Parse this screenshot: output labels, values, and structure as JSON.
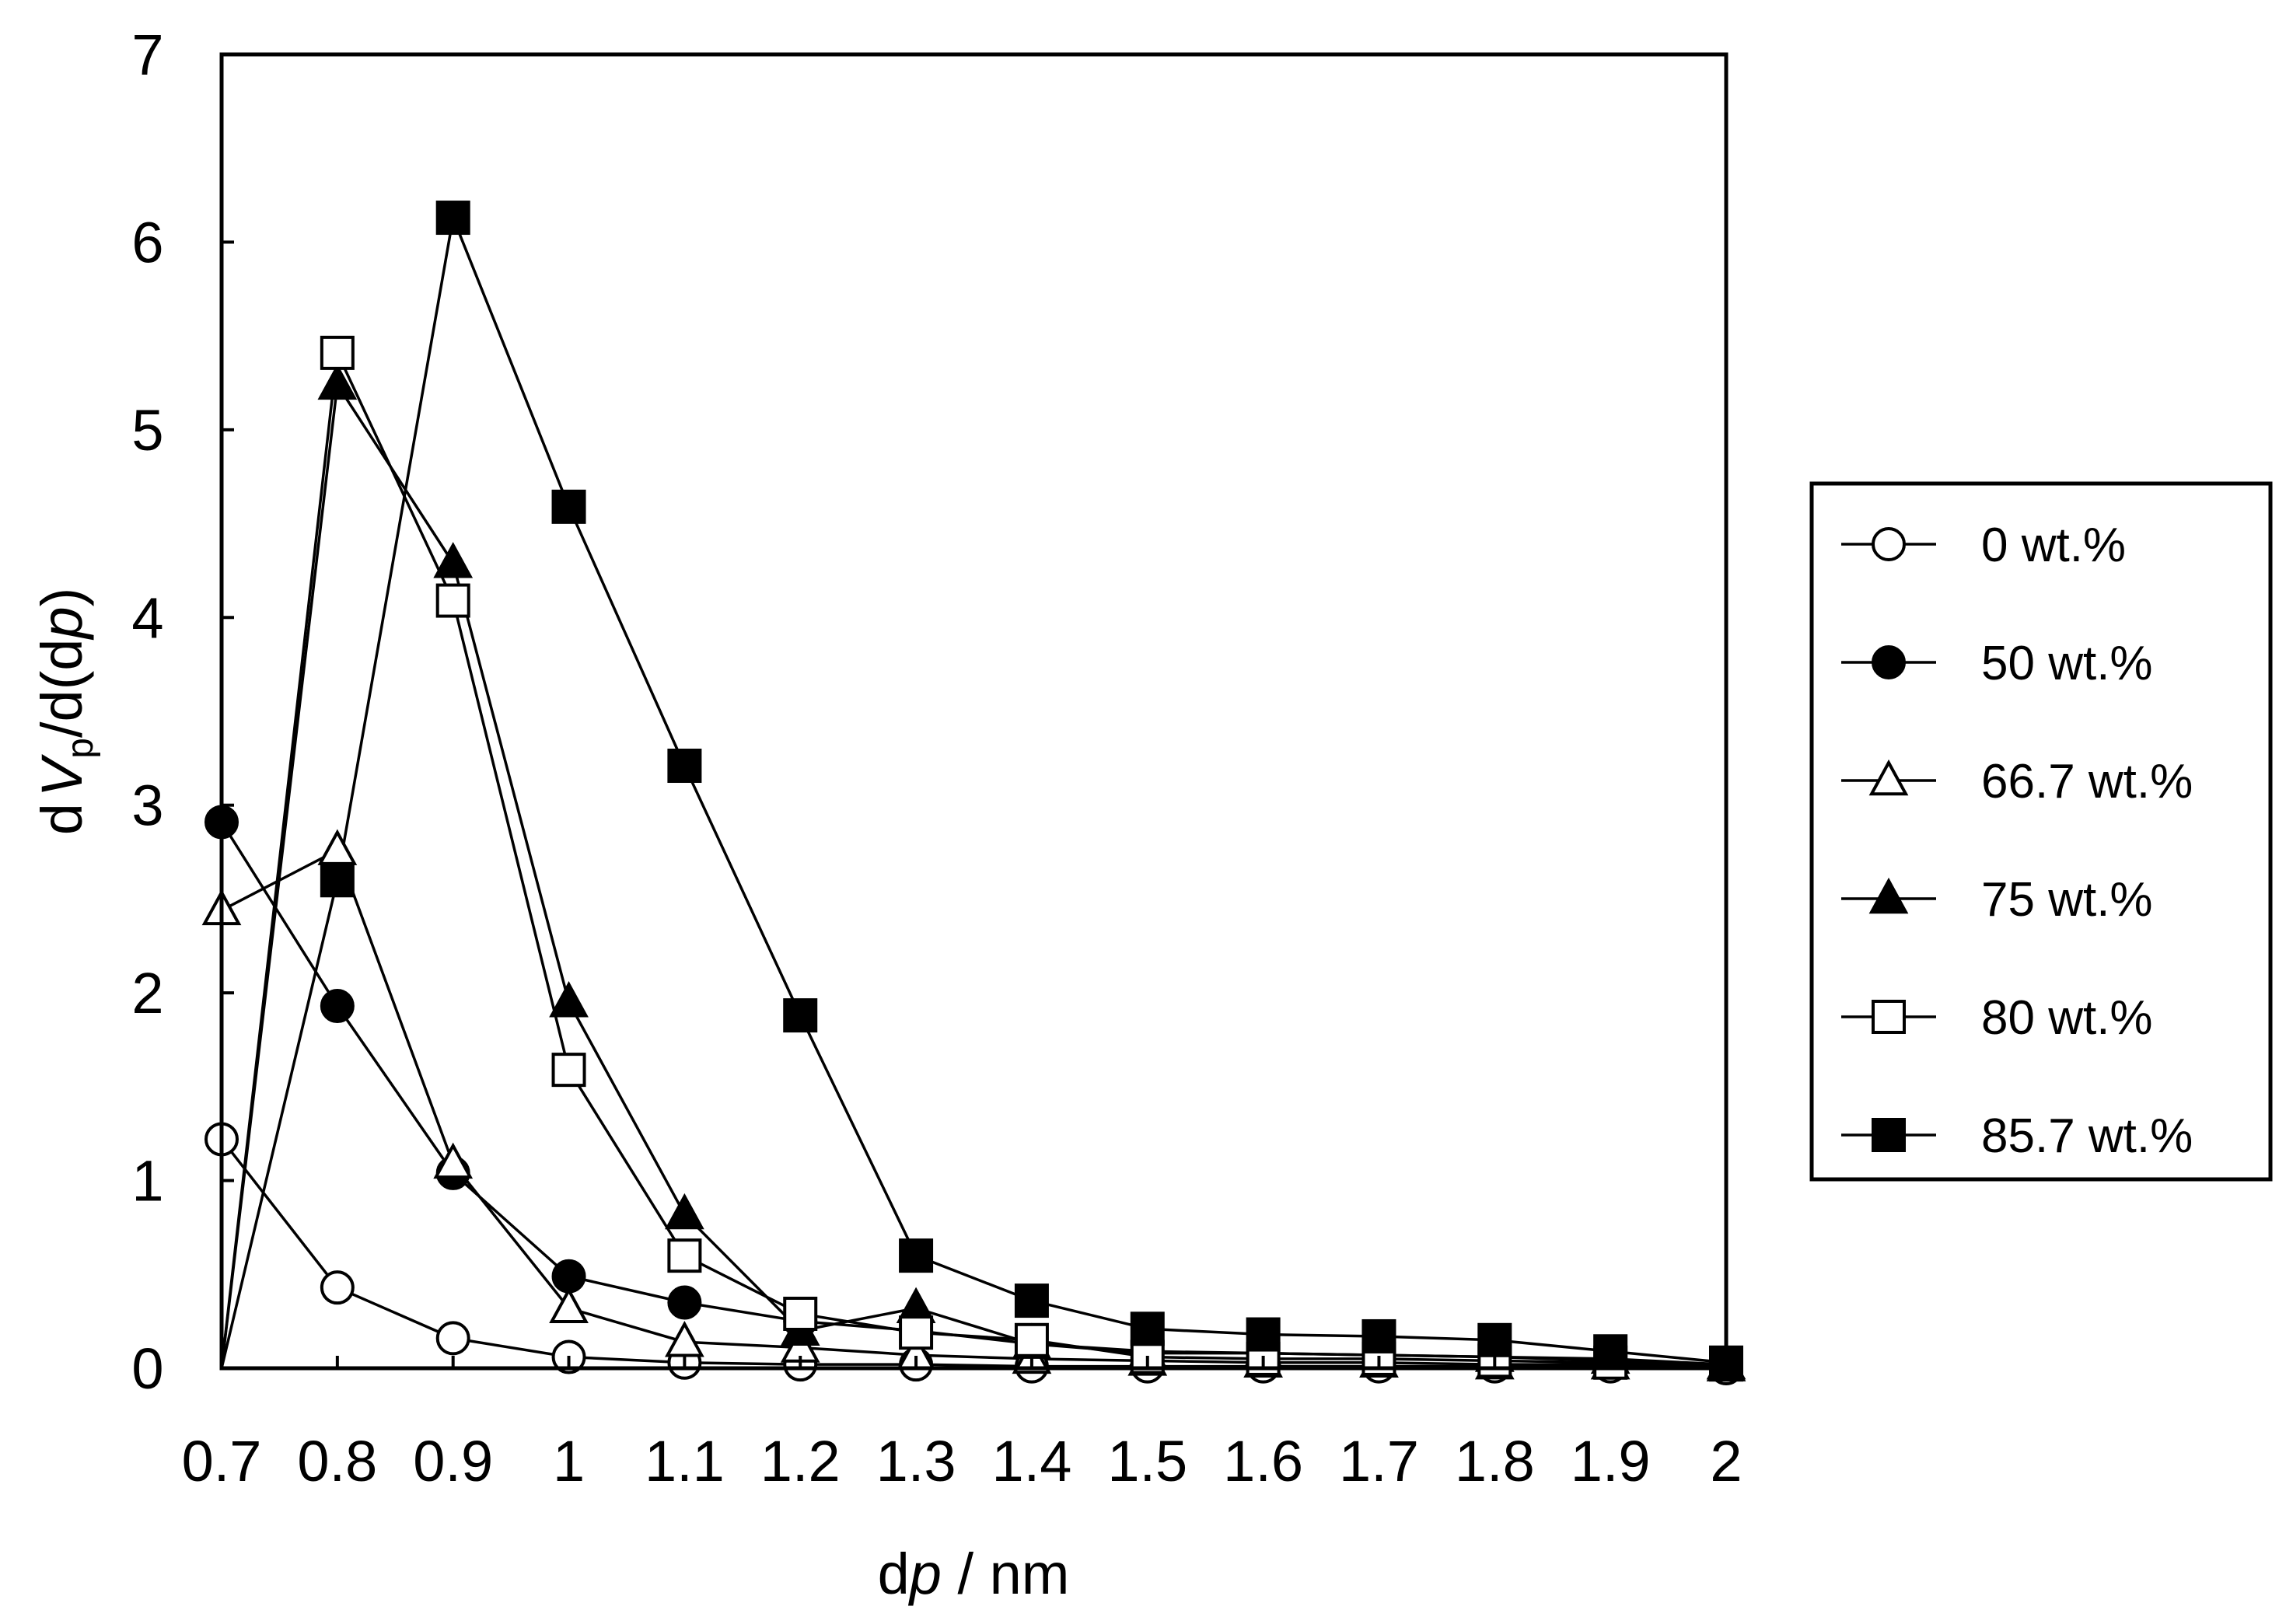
{
  "chart_data": {
    "type": "line",
    "title": "",
    "xlabel": {
      "prefix": "d",
      "italic": "p",
      "suffix": " / nm"
    },
    "ylabel": {
      "d1": "d",
      "v": "V",
      "sub": "p",
      "mid": "/d(d",
      "p": "p",
      "end": ")"
    },
    "xlim": [
      0.7,
      2.0
    ],
    "ylim": [
      0,
      7
    ],
    "x_ticks": [
      "0.7",
      "0.8",
      "0.9",
      "1",
      "1.1",
      "1.2",
      "1.3",
      "1.4",
      "1.5",
      "1.6",
      "1.7",
      "1.8",
      "1.9",
      "2"
    ],
    "y_ticks": [
      "0",
      "1",
      "2",
      "3",
      "4",
      "5",
      "6",
      "7"
    ],
    "grid": false,
    "legend_position": "right",
    "x": [
      0.7,
      0.8,
      0.9,
      1.0,
      1.1,
      1.2,
      1.3,
      1.4,
      1.5,
      1.6,
      1.7,
      1.8,
      1.9,
      2.0
    ],
    "series": [
      {
        "name": "0 wt.%",
        "marker": "circle",
        "filled": false,
        "values": [
          1.22,
          0.43,
          0.16,
          0.06,
          0.03,
          0.02,
          0.02,
          0.01,
          0.01,
          0.01,
          0.01,
          0.01,
          0.01,
          0.0
        ]
      },
      {
        "name": "50 wt.%",
        "marker": "circle",
        "filled": true,
        "values": [
          2.91,
          1.93,
          1.04,
          0.49,
          0.35,
          0.25,
          0.2,
          0.13,
          0.09,
          0.08,
          0.07,
          0.06,
          0.04,
          0.02
        ]
      },
      {
        "name": "66.7 wt.%",
        "marker": "triangle",
        "filled": false,
        "values": [
          2.44,
          2.76,
          1.09,
          0.32,
          0.14,
          0.11,
          0.07,
          0.05,
          0.04,
          0.03,
          0.03,
          0.02,
          0.02,
          0.01
        ]
      },
      {
        "name": "75 wt.%",
        "marker": "triangle",
        "filled": true,
        "values": [
          0.0,
          5.24,
          4.29,
          1.95,
          0.82,
          0.2,
          0.32,
          0.13,
          0.08,
          0.08,
          0.07,
          0.06,
          0.05,
          0.02
        ]
      },
      {
        "name": "80 wt.%",
        "marker": "square",
        "filled": false,
        "values": [
          0.0,
          5.41,
          4.09,
          1.59,
          0.6,
          0.29,
          0.19,
          0.15,
          0.06,
          0.05,
          0.05,
          0.04,
          0.03,
          0.02
        ]
      },
      {
        "name": "85.7 wt.%",
        "marker": "square",
        "filled": true,
        "values": [
          0.0,
          2.6,
          6.13,
          4.59,
          3.21,
          1.88,
          0.6,
          0.36,
          0.21,
          0.18,
          0.17,
          0.15,
          0.09,
          0.03
        ]
      }
    ]
  }
}
